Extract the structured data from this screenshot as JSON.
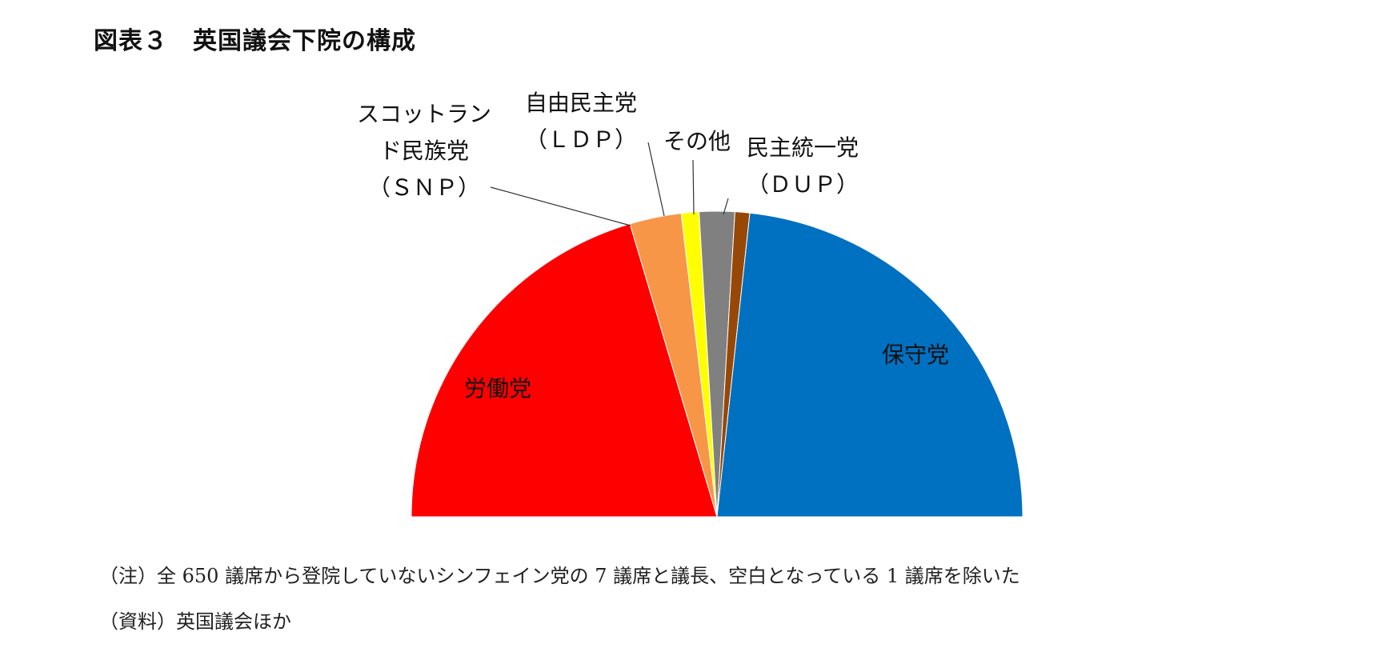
{
  "title": "図表３　英国議会下院の構成",
  "chart_data": {
    "type": "pie",
    "variant": "semicircle",
    "start": "left",
    "slices": [
      {
        "label_lines": [
          "労働党"
        ],
        "value": 262,
        "color": "#ff0000",
        "label_position": "inside"
      },
      {
        "label_lines": [
          "スコットラン",
          "ド民族党",
          "（ＳＮＰ）"
        ],
        "value": 35,
        "color": "#f79646",
        "label_position": "outside"
      },
      {
        "label_lines": [
          "自由民主党",
          "（ＬＤＰ）"
        ],
        "value": 12,
        "color": "#ffff00",
        "label_position": "outside"
      },
      {
        "label_lines": [
          "その他"
        ],
        "value": 24,
        "color": "#808080",
        "label_position": "outside"
      },
      {
        "label_lines": [
          "民主統一党",
          "（ＤＵＰ）"
        ],
        "value": 10,
        "color": "#974706",
        "label_position": "outside"
      },
      {
        "label_lines": [
          "保守党"
        ],
        "value": 299,
        "color": "#0070c0",
        "label_position": "inside"
      }
    ]
  },
  "notes": {
    "note_1": "（注）全 650 議席から登院していないシンフェイン党の 7 議席と議長、空白となっている 1 議席を除いた",
    "note_2": "（資料）英国議会ほか"
  }
}
